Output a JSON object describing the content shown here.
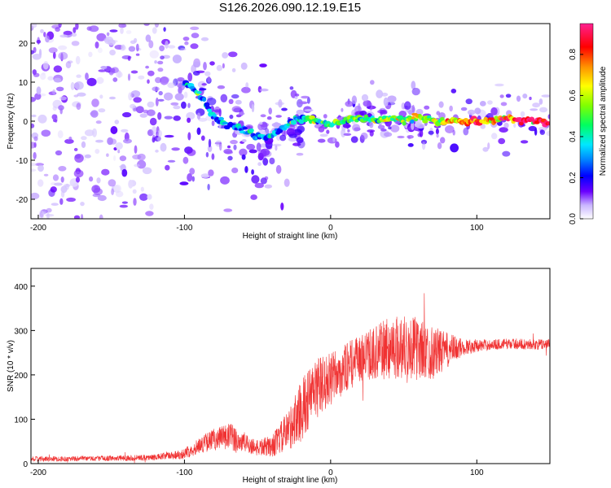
{
  "figure": {
    "title": "S126.2026.090.12.19.E15"
  },
  "chart_data": [
    {
      "type": "heatmap",
      "title": "S126.2026.090.12.19.E15",
      "xlabel": "Height of straight line (km)",
      "ylabel": "Frequency (Hz)",
      "xlim": [
        -205,
        150
      ],
      "ylim": [
        -25,
        25
      ],
      "xticks": [
        -200,
        -100,
        0,
        100
      ],
      "yticks": [
        -20,
        -10,
        0,
        10,
        20
      ],
      "colorbar": {
        "label": "Normalized spectral amplitude",
        "range": [
          0.0,
          0.95
        ],
        "ticks": [
          "0.0",
          "0.2",
          "0.4",
          "0.6",
          "0.8"
        ],
        "tick_values": [
          0.0,
          0.2,
          0.4,
          0.6,
          0.8
        ],
        "colormap": "hsv-rainbow"
      },
      "ridge_track": {
        "x": [
          -100,
          -90,
          -80,
          -70,
          -60,
          -50,
          -40,
          -30,
          -20,
          -10,
          0,
          10,
          20,
          30,
          40,
          50,
          60,
          70,
          80,
          90,
          100,
          110,
          120,
          130,
          140,
          150
        ],
        "y": [
          10,
          7,
          1,
          -1,
          -2,
          -4,
          -4,
          -1,
          1,
          0,
          -1,
          0,
          1,
          0,
          1,
          0,
          1,
          0,
          0,
          0,
          0,
          0,
          1,
          0,
          0,
          0
        ],
        "amplitude": [
          0.3,
          0.3,
          0.3,
          0.28,
          0.28,
          0.3,
          0.32,
          0.35,
          0.38,
          0.4,
          0.45,
          0.45,
          0.48,
          0.5,
          0.5,
          0.52,
          0.55,
          0.6,
          0.7,
          0.75,
          0.78,
          0.75,
          0.72,
          0.8,
          0.85,
          0.9
        ]
      },
      "grid": false
    },
    {
      "type": "line",
      "xlabel": "Height of straight line (km)",
      "ylabel": "SNR (10 * v/v)",
      "xlim": [
        -205,
        150
      ],
      "ylim": [
        0,
        440
      ],
      "xticks": [
        -200,
        -100,
        0,
        100
      ],
      "yticks": [
        0,
        100,
        200,
        300,
        400
      ],
      "color": "#f03232",
      "envelope": {
        "x": [
          -205,
          -150,
          -120,
          -100,
          -90,
          -80,
          -70,
          -60,
          -50,
          -40,
          -30,
          -20,
          -10,
          0,
          10,
          20,
          30,
          40,
          50,
          60,
          70,
          80,
          90,
          100,
          110,
          120,
          130,
          140,
          150
        ],
        "mean": [
          10,
          12,
          14,
          22,
          40,
          55,
          60,
          48,
          35,
          40,
          70,
          120,
          170,
          190,
          215,
          235,
          250,
          260,
          265,
          258,
          250,
          255,
          262,
          266,
          268,
          270,
          270,
          268,
          270
        ],
        "spread": [
          6,
          6,
          7,
          12,
          18,
          25,
          35,
          25,
          18,
          25,
          45,
          70,
          70,
          60,
          55,
          55,
          60,
          70,
          75,
          70,
          60,
          40,
          20,
          14,
          12,
          12,
          12,
          12,
          12
        ]
      },
      "grid": false
    }
  ]
}
